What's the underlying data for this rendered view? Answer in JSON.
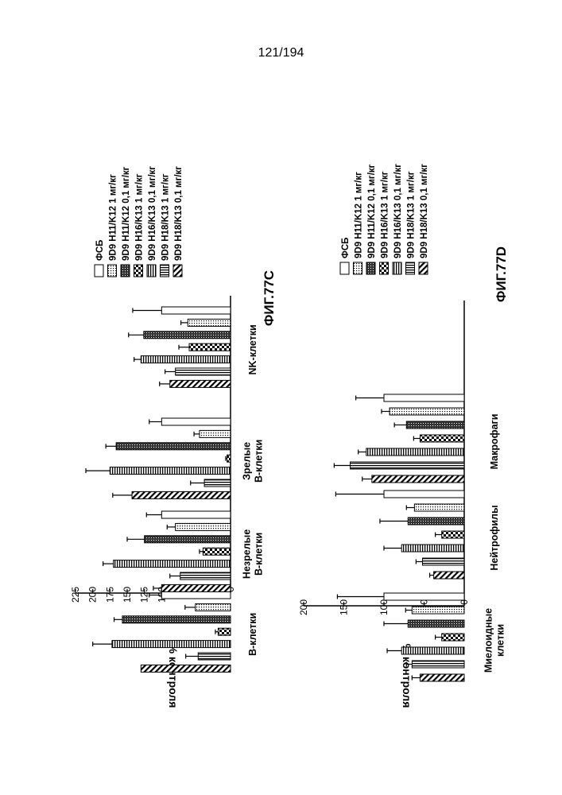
{
  "page": {
    "number": "121/194"
  },
  "legend_entries": [
    "ФСБ",
    "9D9 H11/K12 1 мг/кг",
    "9D9 H11/K12 0,1 мг/кг",
    "9D9 H16/K13 1 мг/кг",
    "9D9 H16/K13 0,1 мг/кг",
    "9D9 H18/K13 1 мг/кг",
    "9D9 H18/K13 0,1 мг/кг"
  ],
  "chart_data": [
    {
      "type": "bar",
      "title": "ФИГ.77C",
      "ylabel": "% контроля",
      "ylim": [
        0,
        225
      ],
      "yticks": [
        0,
        25,
        50,
        75,
        100,
        125,
        150,
        175,
        200,
        225
      ],
      "categories": [
        [
          "B-клетки"
        ],
        [
          "Незрелые",
          "B-клетки"
        ],
        [
          "Зрелые",
          "B-клетки"
        ],
        [
          "NK-клетки"
        ]
      ],
      "series": [
        {
          "name": "ФСБ",
          "pattern": "white",
          "values": [
            100,
            100,
            100,
            100
          ],
          "errors": [
            18,
            22,
            18,
            42
          ]
        },
        {
          "name": "9D9 H11/K12 1 мг/кг",
          "pattern": "dots",
          "values": [
            51,
            80,
            45,
            62
          ],
          "errors": [
            15,
            12,
            8,
            10
          ]
        },
        {
          "name": "9D9 H11/K12 0,1 мг/кг",
          "pattern": "dense",
          "values": [
            157,
            125,
            166,
            126
          ],
          "errors": [
            12,
            25,
            15,
            22
          ]
        },
        {
          "name": "9D9 H16/K13 1 мг/кг",
          "pattern": "checker",
          "values": [
            18,
            40,
            5,
            60
          ],
          "errors": [
            4,
            5,
            2,
            15
          ]
        },
        {
          "name": "9D9 H16/K13 0,1 мг/кг",
          "pattern": "hlines",
          "values": [
            172,
            170,
            175,
            130
          ],
          "errors": [
            28,
            15,
            35,
            10
          ]
        },
        {
          "name": "9D9 H18/K13 1 мг/кг",
          "pattern": "vlines",
          "values": [
            47,
            73,
            38,
            80
          ],
          "errors": [
            18,
            15,
            20,
            15
          ]
        },
        {
          "name": "9D9 H18/K13 0,1 мг/кг",
          "pattern": "diag",
          "values": [
            130,
            100,
            143,
            88
          ],
          "errors": [
            0,
            12,
            28,
            15
          ]
        }
      ]
    },
    {
      "type": "bar",
      "title": "ФИГ.77D",
      "ylabel": "% контроля",
      "ylim": [
        0,
        200
      ],
      "yticks": [
        0,
        50,
        100,
        150,
        200
      ],
      "categories": [
        [
          "Миелоидные",
          "клетки"
        ],
        [
          "Нейтрофилы"
        ],
        [
          "Макрофаги"
        ]
      ],
      "series": [
        {
          "name": "ФСБ",
          "pattern": "white",
          "values": [
            100,
            100,
            100
          ],
          "errors": [
            58,
            60,
            35
          ]
        },
        {
          "name": "9D9 H11/K12 1 мг/кг",
          "pattern": "dots",
          "values": [
            65,
            62,
            93
          ],
          "errors": [
            8,
            10,
            10
          ]
        },
        {
          "name": "9D9 H11/K12 0,1 мг/кг",
          "pattern": "dense",
          "values": [
            70,
            70,
            72
          ],
          "errors": [
            30,
            35,
            15
          ]
        },
        {
          "name": "9D9 H16/K13 1 мг/кг",
          "pattern": "checker",
          "values": [
            28,
            28,
            55
          ],
          "errors": [
            8,
            8,
            8
          ]
        },
        {
          "name": "9D9 H16/K13 0,1 мг/кг",
          "pattern": "hlines",
          "values": [
            78,
            78,
            122
          ],
          "errors": [
            18,
            22,
            10
          ]
        },
        {
          "name": "9D9 H18/K13 1 мг/кг",
          "pattern": "vlines",
          "values": [
            65,
            52,
            142
          ],
          "errors": [
            7,
            8,
            20
          ]
        },
        {
          "name": "9D9 H18/K13 0,1 мг/кг",
          "pattern": "diag",
          "values": [
            55,
            38,
            115
          ],
          "errors": [
            10,
            5,
            12
          ]
        }
      ]
    }
  ]
}
